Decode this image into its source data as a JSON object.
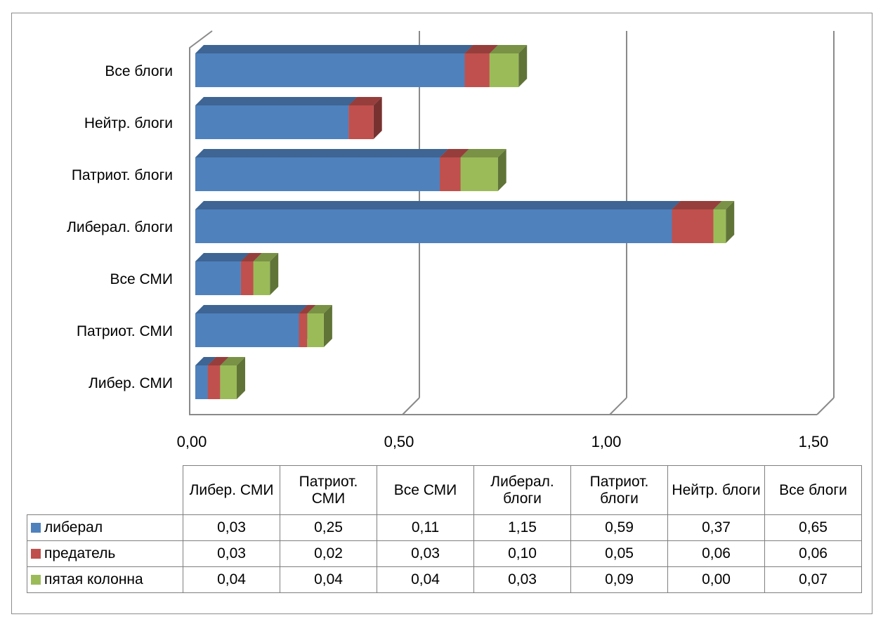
{
  "chart_data": {
    "type": "bar",
    "orientation": "horizontal",
    "stacked": true,
    "style": "3d",
    "categories": [
      "Либер. СМИ",
      "Патриот. СМИ",
      "Все СМИ",
      "Либерал. блоги",
      "Патриот. блоги",
      "Нейтр. блоги",
      "Все блоги"
    ],
    "table_headers": [
      "Либер. СМИ",
      "Патриот. СМИ",
      "Все СМИ",
      "Либерал. блоги",
      "Патриот. блоги",
      "Нейтр. блоги",
      "Все блоги"
    ],
    "series": [
      {
        "name": "либерал",
        "color": "#4F81BD",
        "values": [
          0.03,
          0.25,
          0.11,
          1.15,
          0.59,
          0.37,
          0.65
        ],
        "labels": [
          "0,03",
          "0,25",
          "0,11",
          "1,15",
          "0,59",
          "0,37",
          "0,65"
        ]
      },
      {
        "name": "предатель",
        "color": "#C0504D",
        "values": [
          0.03,
          0.02,
          0.03,
          0.1,
          0.05,
          0.06,
          0.06
        ],
        "labels": [
          "0,03",
          "0,02",
          "0,03",
          "0,10",
          "0,05",
          "0,06",
          "0,06"
        ]
      },
      {
        "name": "пятая колонна",
        "color": "#9BBB59",
        "values": [
          0.04,
          0.04,
          0.04,
          0.03,
          0.09,
          0.0,
          0.07
        ],
        "labels": [
          "0,04",
          "0,04",
          "0,04",
          "0,03",
          "0,09",
          "0,00",
          "0,07"
        ]
      }
    ],
    "xlim": [
      0,
      1.5
    ],
    "xticks": [
      0,
      0.5,
      1.0,
      1.5
    ],
    "xtick_labels": [
      "0,00",
      "0,50",
      "1,00",
      "1,50"
    ],
    "grid": true,
    "legend": "data-table"
  }
}
